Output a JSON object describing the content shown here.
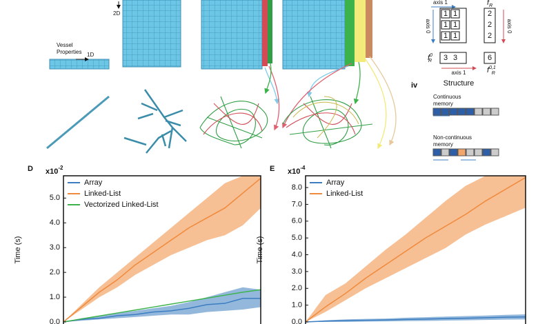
{
  "diagram": {
    "vessel_label": [
      "Vessel",
      "Properties"
    ],
    "dim_1d": "1D",
    "dim_2d": "2D",
    "structure": {
      "axis_1_top": "axis 1",
      "axis_0_left": "axis 0",
      "axis_0_right": "axis 0",
      "axis_1_bottom": "axis 1",
      "matrix": [
        [
          "1",
          "1"
        ],
        [
          "1",
          "1"
        ],
        [
          "1",
          "1"
        ]
      ],
      "row_sums": [
        "2",
        "2",
        "2"
      ],
      "col_sums": [
        "3",
        "3"
      ],
      "total": "6",
      "f_top": {
        "base": "f",
        "sub": "R"
      },
      "f_left": {
        "base": "f",
        "sub": "R",
        "sup": "0"
      },
      "f_right": {
        "base": "f",
        "sub": "R",
        "sup": "0,1"
      },
      "panel": "iv",
      "title": "Structure",
      "continuous": [
        "Continuous",
        "memory"
      ],
      "non_continuous": [
        "Non-continuous",
        "memory"
      ]
    }
  },
  "chart_data": [
    {
      "type": "line",
      "panel": "D",
      "ylabel": "Time (s)",
      "multiplier": {
        "base": "x10",
        "exponent": "-2"
      },
      "ylim": [
        0,
        5.9
      ],
      "yticks": [
        {
          "value": 0,
          "label": "0.0"
        },
        {
          "value": 1,
          "label": "1.0"
        },
        {
          "value": 2,
          "label": "2.0"
        },
        {
          "value": 3,
          "label": "3.0"
        },
        {
          "value": 4,
          "label": "4.0"
        },
        {
          "value": 5,
          "label": "5.0"
        }
      ],
      "series": [
        {
          "name": "Array",
          "color": "#3b7dc0",
          "values": [
            0,
            0.1,
            0.15,
            0.25,
            0.3,
            0.4,
            0.45,
            0.55,
            0.7,
            0.75,
            0.95,
            0.95
          ],
          "lower": [
            0,
            0.05,
            0.1,
            0.15,
            0.2,
            0.25,
            0.3,
            0.3,
            0.4,
            0.45,
            0.5,
            0.6
          ],
          "upper": [
            0,
            0.15,
            0.25,
            0.35,
            0.45,
            0.55,
            0.65,
            0.8,
            1.0,
            1.2,
            1.4,
            1.3
          ]
        },
        {
          "name": "Linked-List",
          "color": "#f08a3c",
          "values": [
            0,
            0.6,
            1.2,
            1.7,
            2.3,
            2.8,
            3.3,
            3.8,
            4.2,
            4.6,
            5.2,
            5.8
          ],
          "lower": [
            0,
            0.5,
            1.0,
            1.4,
            1.9,
            2.3,
            2.7,
            3.0,
            3.3,
            3.5,
            3.9,
            4.6
          ],
          "upper": [
            0,
            0.7,
            1.4,
            2.0,
            2.6,
            3.2,
            3.8,
            4.4,
            5.0,
            5.6,
            5.9,
            5.9
          ]
        },
        {
          "name": "Vectorized Linked-List",
          "color": "#3cb34a",
          "values": [
            0,
            0.12,
            0.24,
            0.36,
            0.48,
            0.6,
            0.72,
            0.84,
            0.96,
            1.08,
            1.2,
            1.3
          ]
        }
      ]
    },
    {
      "type": "line",
      "panel": "E",
      "ylabel": "Time (s)",
      "multiplier": {
        "base": "x10",
        "exponent": "-4"
      },
      "ylim": [
        0,
        8.7
      ],
      "yticks": [
        {
          "value": 0,
          "label": "0.0"
        },
        {
          "value": 1,
          "label": "1.0"
        },
        {
          "value": 2,
          "label": "2.0"
        },
        {
          "value": 3,
          "label": "3.0"
        },
        {
          "value": 4,
          "label": "4.0"
        },
        {
          "value": 5,
          "label": "5.0"
        },
        {
          "value": 6,
          "label": "6.0"
        },
        {
          "value": 7,
          "label": "7.0"
        },
        {
          "value": 8,
          "label": "8.0"
        }
      ],
      "series": [
        {
          "name": "Array",
          "color": "#3b7dc0",
          "values": [
            0,
            0.05,
            0.08,
            0.1,
            0.12,
            0.15,
            0.17,
            0.2,
            0.22,
            0.25,
            0.28,
            0.3
          ],
          "lower": [
            0,
            0,
            0,
            0.02,
            0.03,
            0.05,
            0.06,
            0.08,
            0.1,
            0.12,
            0.14,
            0.15
          ],
          "upper": [
            0,
            0.1,
            0.15,
            0.18,
            0.2,
            0.25,
            0.28,
            0.32,
            0.35,
            0.38,
            0.42,
            0.45
          ]
        },
        {
          "name": "Linked-List",
          "color": "#f08a3c",
          "values": [
            0,
            0.9,
            1.7,
            2.6,
            3.4,
            4.2,
            5.0,
            5.7,
            6.4,
            7.2,
            7.9,
            8.6
          ],
          "lower": [
            0,
            0.6,
            1.3,
            2.0,
            2.6,
            3.2,
            3.8,
            4.4,
            5.2,
            5.8,
            6.3,
            6.8
          ],
          "upper": [
            0,
            1.6,
            2.3,
            3.3,
            4.3,
            5.2,
            6.2,
            7.2,
            8.1,
            8.7,
            8.7,
            8.7
          ]
        }
      ]
    }
  ]
}
